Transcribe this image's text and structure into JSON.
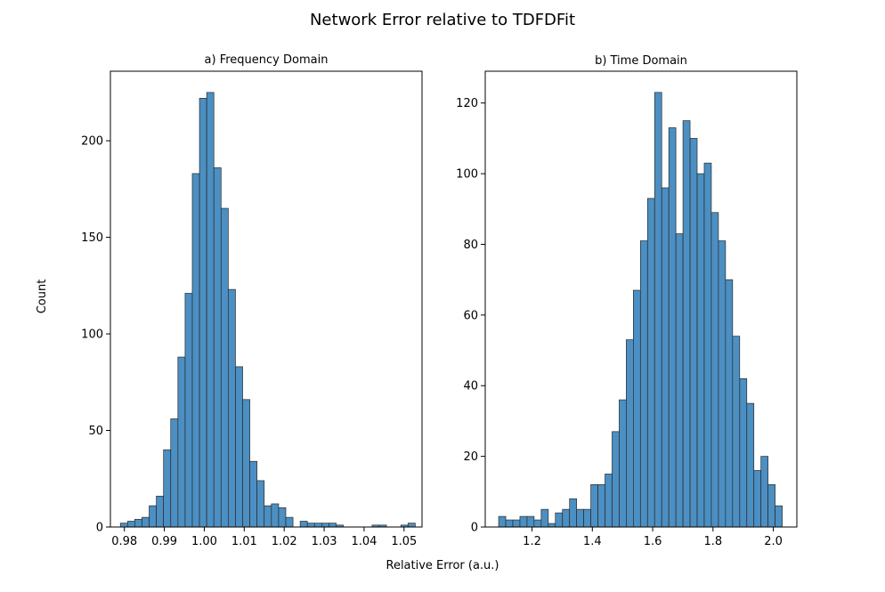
{
  "figure": {
    "title": "Network Error relative to TDFDFit",
    "ylabel": "Count",
    "xlabel": "Relative Error (a.u.)"
  },
  "colors": {
    "bar_fill": "#4c8fc2",
    "bar_edge": "#2a2a2a",
    "axes": "#000000",
    "background": "#ffffff"
  },
  "chart_data": [
    {
      "type": "bar",
      "title": "a) Frequency Domain",
      "xlabel": "",
      "ylabel": "",
      "xlim": [
        0.9765,
        1.0545
      ],
      "ylim": [
        0,
        236
      ],
      "x_ticks": [
        0.98,
        0.99,
        1.0,
        1.01,
        1.02,
        1.03,
        1.04,
        1.05
      ],
      "x_tick_labels": [
        "0.98",
        "0.99",
        "1.00",
        "1.01",
        "1.02",
        "1.03",
        "1.04",
        "1.05"
      ],
      "y_ticks": [
        0,
        50,
        100,
        150,
        200
      ],
      "y_tick_labels": [
        "0",
        "50",
        "100",
        "150",
        "200"
      ],
      "bin_start": 0.979,
      "bin_width": 0.0018,
      "values": [
        2,
        3,
        4,
        5,
        11,
        16,
        40,
        56,
        88,
        121,
        183,
        222,
        225,
        186,
        165,
        123,
        83,
        66,
        34,
        24,
        11,
        12,
        10,
        5,
        0,
        3,
        2,
        2,
        2,
        2,
        1,
        0,
        0,
        0,
        0,
        1,
        1,
        0,
        0,
        1,
        2
      ]
    },
    {
      "type": "bar",
      "title": "b) Time Domain",
      "xlabel": "",
      "ylabel": "",
      "xlim": [
        1.045,
        2.078
      ],
      "ylim": [
        0,
        129
      ],
      "x_ticks": [
        1.2,
        1.4,
        1.6,
        1.8,
        2.0
      ],
      "x_tick_labels": [
        "1.2",
        "1.4",
        "1.6",
        "1.8",
        "2.0"
      ],
      "y_ticks": [
        0,
        20,
        40,
        60,
        80,
        100,
        120
      ],
      "y_tick_labels": [
        "0",
        "20",
        "40",
        "60",
        "80",
        "100",
        "120"
      ],
      "bin_start": 1.0895,
      "bin_width": 0.0235,
      "values": [
        3,
        2,
        2,
        3,
        3,
        2,
        5,
        1,
        4,
        5,
        8,
        5,
        5,
        12,
        12,
        15,
        27,
        36,
        53,
        67,
        81,
        93,
        123,
        96,
        113,
        83,
        115,
        110,
        100,
        103,
        89,
        81,
        70,
        54,
        42,
        35,
        16,
        20,
        12,
        6
      ]
    }
  ]
}
